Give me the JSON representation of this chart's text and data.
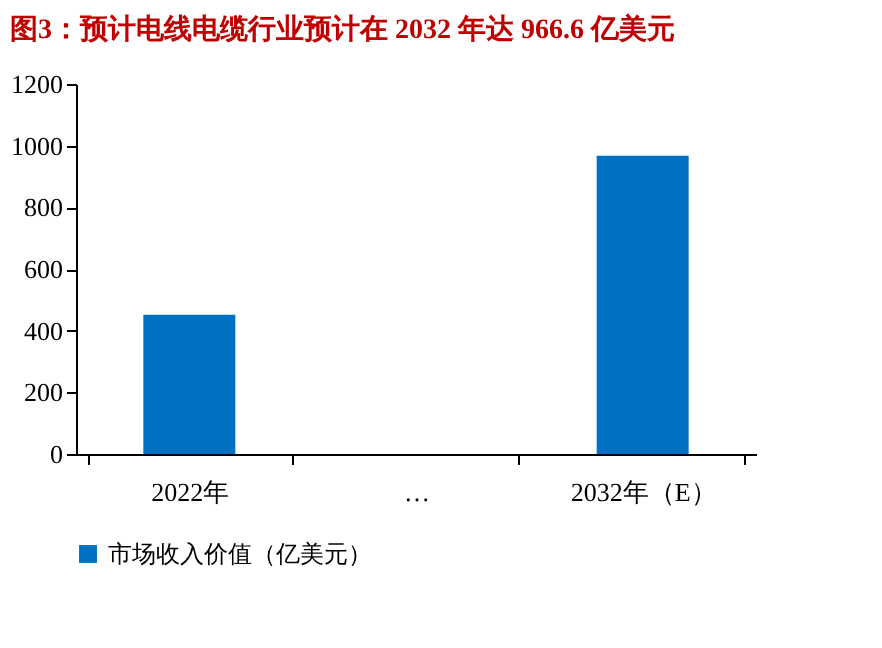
{
  "chart_data": {
    "type": "bar",
    "title": "图3：预计电线电缆行业预计在 2032 年达 966.6 亿美元",
    "categories": [
      "2022年",
      "…",
      "2032年（E）"
    ],
    "series": [
      {
        "name": "市场收入价值（亿美元）",
        "color": "#0070c0",
        "values": [
          452,
          null,
          967
        ]
      }
    ],
    "ylim": [
      0,
      1200
    ],
    "yticks": [
      0,
      200,
      400,
      600,
      800,
      1000,
      1200
    ],
    "grid": false,
    "legend": "bottom"
  }
}
